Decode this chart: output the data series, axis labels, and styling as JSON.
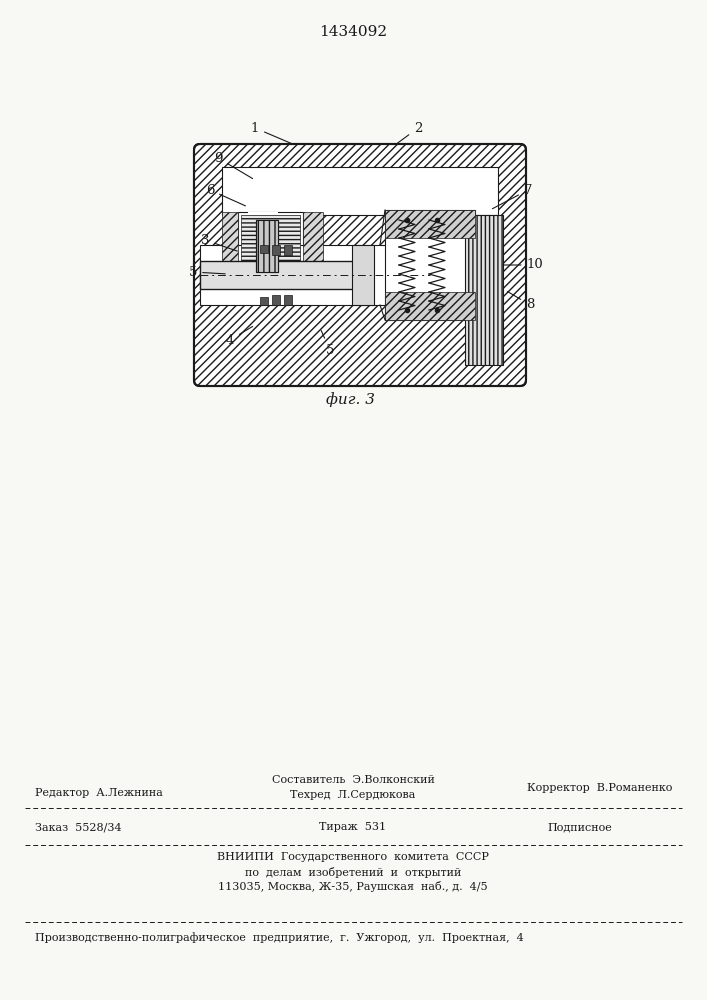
{
  "patent_number": "1434092",
  "fig_label": "фиг. 3",
  "bg_color": "#f8f8f4",
  "line_color": "#1a1a1a",
  "footer": {
    "line1_left": "Редактор  А.Лежнина",
    "line1_center_top": "Составитель  Э.Волконский",
    "line1_center_bot": "Техред  Л.Сердюкова",
    "line1_right": "Корректор  В.Романенко",
    "line2_left": "Заказ  5528/34",
    "line2_center": "Тираж  531",
    "line2_right": "Подписное",
    "line3": "ВНИИПИ  Государственного  комитета  СССР",
    "line4": "по  делам  изобретений  и  открытий",
    "line5": "113035, Москва, Ж-35, Раушская  наб., д.  4/5",
    "line6": "Производственно-полиграфическое  предприятие,  г.  Ужгород,  ул.  Проектная,  4"
  }
}
